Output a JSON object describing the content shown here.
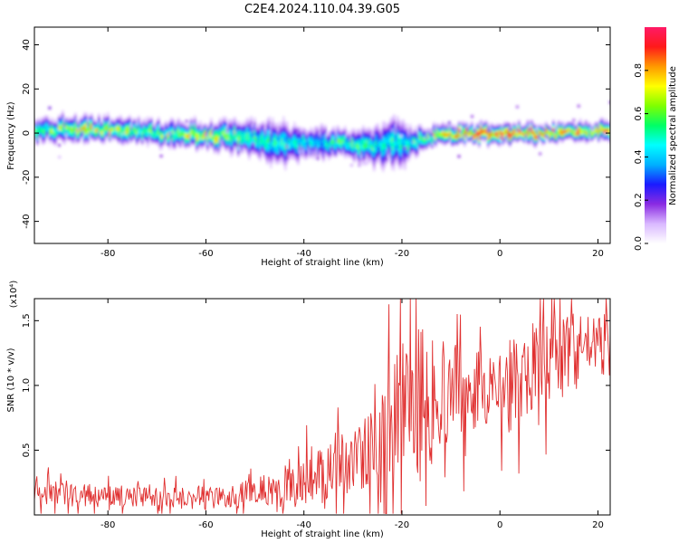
{
  "title": "C2E4.2024.110.04.39.G05",
  "colors": {
    "snr_line": "#e03030",
    "background": "#ffffff",
    "colormap": [
      "#ffffff",
      "#d9b8ff",
      "#8a2be2",
      "#1a1aff",
      "#00b0ff",
      "#00ffff",
      "#00ff66",
      "#7fff00",
      "#ffff00",
      "#ff9900",
      "#ff1a1a",
      "#ff1a66"
    ]
  },
  "chart_data": [
    {
      "type": "heatmap",
      "title": "C2E4.2024.110.04.39.G05",
      "xlabel": "Height of straight line (km)",
      "ylabel": "Frequency (Hz)",
      "xlim": [
        -95,
        22.5
      ],
      "ylim": [
        -50,
        48
      ],
      "xticks": [
        -80,
        -60,
        -40,
        -20,
        0,
        20
      ],
      "yticks": [
        -40,
        -20,
        0,
        20,
        40
      ],
      "colorbar": {
        "label": "Normalized spectral amplitude",
        "range": [
          0,
          1
        ],
        "ticks": [
          "0.0",
          "0.2",
          "0.4",
          "0.6",
          "0.8"
        ]
      },
      "ridge": {
        "description": "frequency centre of the high-amplitude band vs height",
        "x": [
          -95,
          -90,
          -85,
          -80,
          -75,
          -70,
          -65,
          -60,
          -55,
          -50,
          -45,
          -40,
          -35,
          -30,
          -25,
          -22,
          -20,
          -18,
          -15,
          -10,
          -5,
          0,
          5,
          10,
          15,
          20,
          22.5
        ],
        "freq": [
          1,
          2,
          2,
          2,
          1,
          0,
          0,
          -1,
          -1,
          -3,
          -5,
          -4,
          -4,
          -5,
          -6,
          -3,
          -5,
          -4,
          -2,
          0,
          0,
          0,
          0,
          0,
          1,
          1,
          2
        ],
        "halfwidth": [
          4,
          4,
          4,
          4,
          4,
          4,
          4,
          4,
          5,
          6,
          7,
          5,
          5,
          5,
          7,
          8,
          8,
          5,
          3,
          3,
          3,
          3,
          3,
          3,
          3,
          3,
          3
        ],
        "peak_amplitude": [
          0.6,
          0.65,
          0.7,
          0.7,
          0.65,
          0.6,
          0.65,
          0.7,
          0.6,
          0.55,
          0.5,
          0.45,
          0.5,
          0.55,
          0.5,
          0.55,
          0.5,
          0.55,
          0.7,
          0.85,
          0.9,
          0.95,
          0.95,
          0.9,
          0.85,
          0.8,
          0.8
        ]
      }
    },
    {
      "type": "line",
      "xlabel": "Height of straight line (km)",
      "ylabel": "SNR (10 * v/v)",
      "y_multiplier_label": "(x10⁴)",
      "xlim": [
        -95,
        22.5
      ],
      "ylim": [
        0,
        1.67
      ],
      "xticks": [
        -80,
        -60,
        -40,
        -20,
        0,
        20
      ],
      "yticks": [
        "0.5",
        "1.0",
        "1.5"
      ],
      "series": [
        {
          "x": [
            -95,
            -90,
            -85,
            -80,
            -75,
            -70,
            -65,
            -60,
            -55,
            -50,
            -45,
            -42,
            -40,
            -35,
            -30,
            -25,
            -22,
            -20,
            -18,
            -15,
            -12,
            -10,
            -5,
            -2,
            0,
            3,
            6,
            10,
            15,
            18,
            20,
            22.5
          ],
          "base": [
            0.18,
            0.16,
            0.15,
            0.14,
            0.14,
            0.14,
            0.13,
            0.13,
            0.15,
            0.17,
            0.2,
            0.22,
            0.28,
            0.35,
            0.42,
            0.55,
            0.7,
            0.85,
            0.8,
            0.85,
            0.9,
            0.95,
            1.0,
            0.95,
            0.95,
            1.05,
            1.15,
            1.2,
            1.25,
            1.3,
            1.35,
            1.4
          ],
          "spread": [
            0.1,
            0.1,
            0.09,
            0.08,
            0.08,
            0.08,
            0.08,
            0.09,
            0.1,
            0.12,
            0.14,
            0.16,
            0.2,
            0.22,
            0.25,
            0.3,
            0.45,
            0.55,
            0.5,
            0.5,
            0.45,
            0.4,
            0.35,
            0.3,
            0.3,
            0.35,
            0.4,
            0.35,
            0.3,
            0.25,
            0.2,
            0.15
          ]
        }
      ]
    }
  ]
}
